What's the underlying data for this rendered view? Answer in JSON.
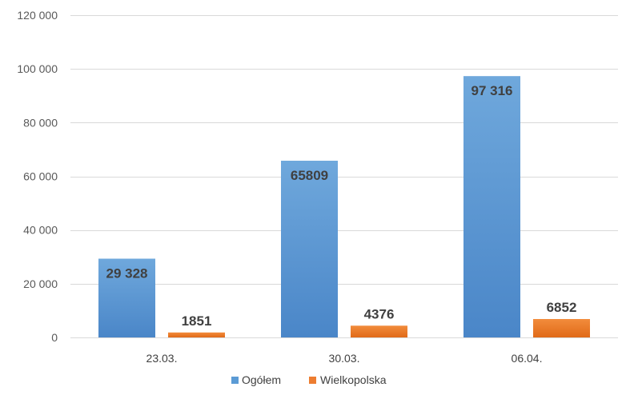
{
  "chart_data": {
    "type": "bar",
    "categories": [
      "23.03.",
      "30.03.",
      "06.04."
    ],
    "series": [
      {
        "name": "Ogółem",
        "values": [
          29328,
          65809,
          97316
        ],
        "labels": [
          "29 328",
          "65809",
          "97 316"
        ],
        "color": "#5B9BD5"
      },
      {
        "name": "Wielkopolska",
        "values": [
          1851,
          4376,
          6852
        ],
        "labels": [
          "1851",
          "4376",
          "6852"
        ],
        "color": "#ED7D31"
      }
    ],
    "ylim": [
      0,
      120000
    ],
    "yticks": [
      0,
      20000,
      40000,
      60000,
      80000,
      100000,
      120000
    ],
    "ytick_labels": [
      "0",
      "20 000",
      "40 000",
      "60 000",
      "80 000",
      "100 000",
      "120 000"
    ],
    "grid": true,
    "legend": "bottom",
    "title": "",
    "xlabel": "",
    "ylabel": ""
  }
}
